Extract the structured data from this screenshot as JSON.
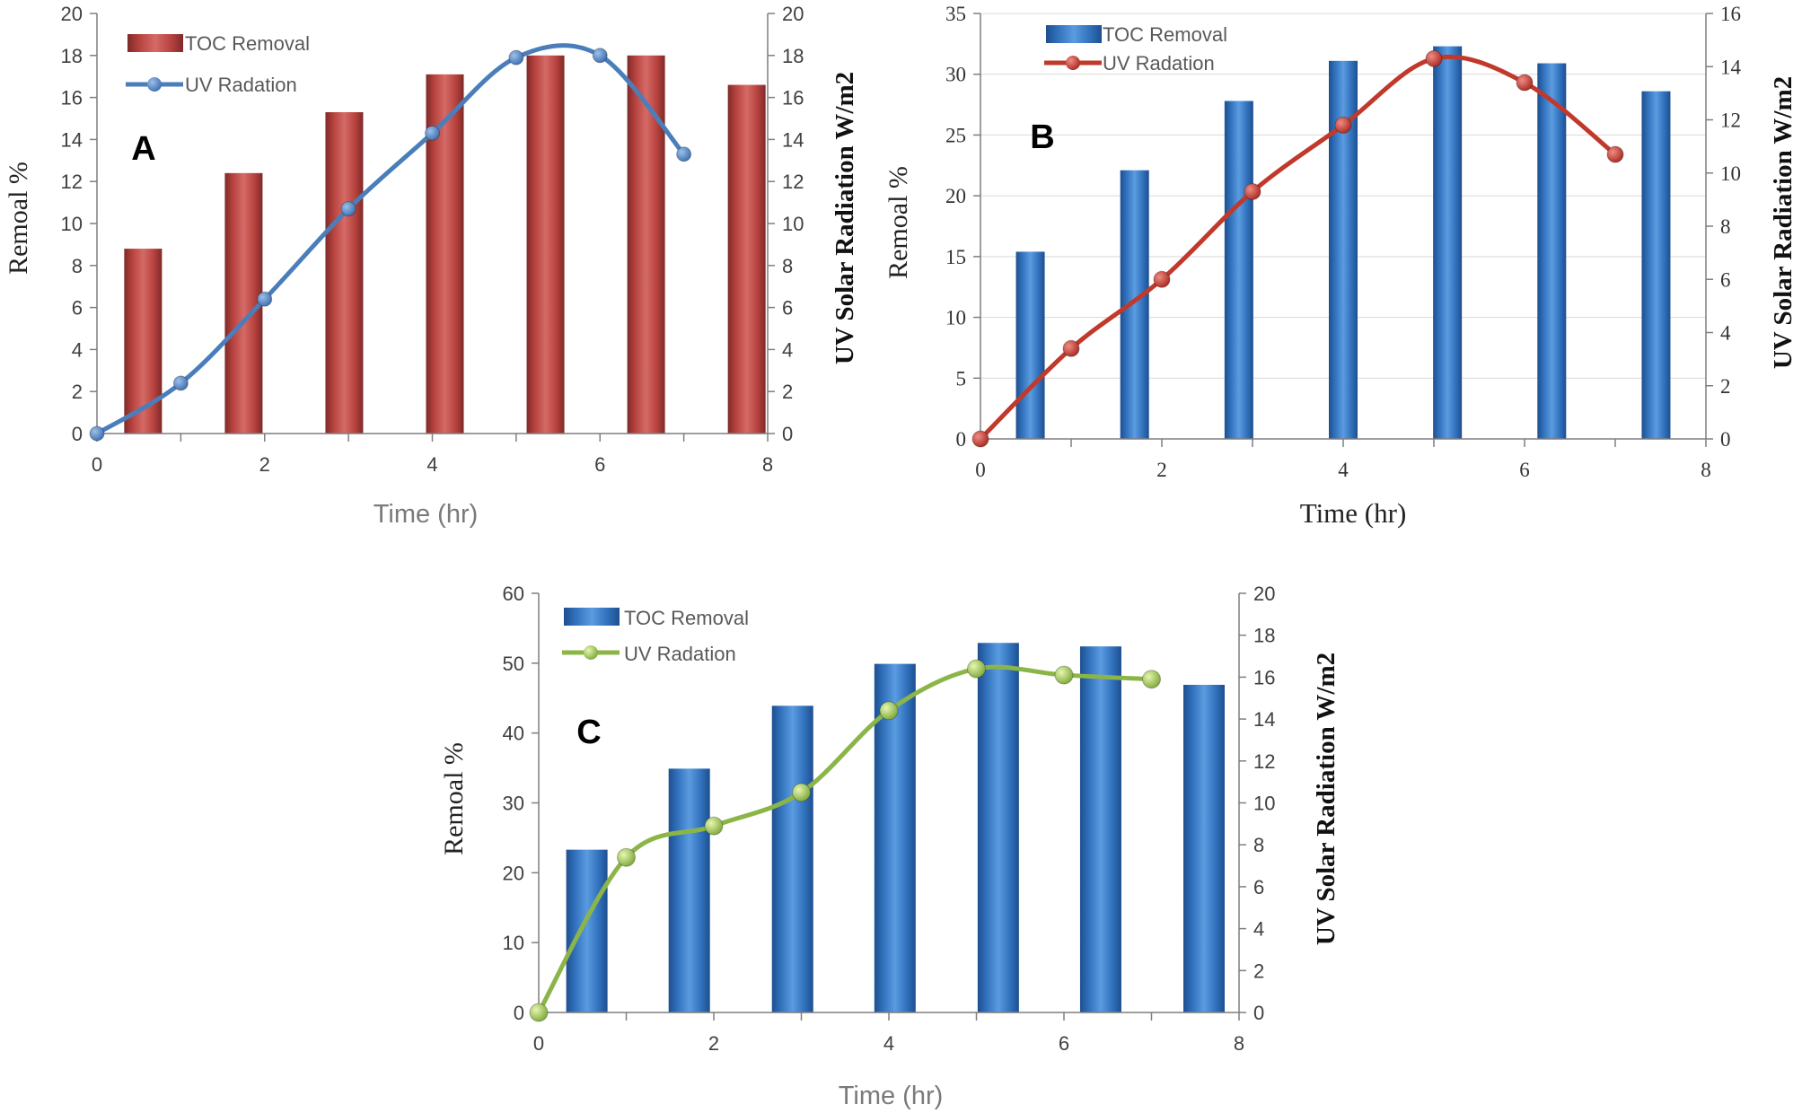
{
  "colors": {
    "red_bar": "#c0504d",
    "blue_bar": "#3b78c2",
    "blue_line": "#4a7ebb",
    "red_line": "#c0392b",
    "green_line": "#8cb548",
    "axis": "#7f7f7f",
    "grid": "#d9d9d9"
  },
  "chart_data": [
    {
      "type": "bar",
      "panel_label": "A",
      "xlabel": "Time (hr)",
      "ylabel": "Remoal %",
      "ylabel_right": "UV Solar Radiation W/m2",
      "xlim": [
        0,
        8
      ],
      "ylim": [
        0,
        20
      ],
      "ylim_right": [
        0,
        20
      ],
      "xticks": [
        "0",
        "2",
        "4",
        "6",
        "8"
      ],
      "yticks": [
        "0",
        "2",
        "4",
        "6",
        "8",
        "10",
        "12",
        "14",
        "16",
        "18",
        "20"
      ],
      "yticks_right": [
        "0",
        "2",
        "4",
        "6",
        "8",
        "10",
        "12",
        "14",
        "16",
        "18",
        "20"
      ],
      "legend": [
        "TOC Removal",
        "UV Radation"
      ],
      "bar_color": "#c0504d",
      "line_color": "#4a7ebb",
      "series": [
        {
          "name": "TOC Removal",
          "axis": "left",
          "x": [
            0.55,
            1.75,
            2.95,
            4.15,
            5.35,
            6.55,
            7.75
          ],
          "values": [
            8.8,
            12.4,
            15.3,
            17.1,
            18.0,
            18.0,
            16.6
          ]
        },
        {
          "name": "UV Radation",
          "axis": "right",
          "x": [
            0,
            1,
            2,
            3,
            4,
            5,
            6,
            7
          ],
          "values": [
            0,
            2.4,
            6.4,
            10.7,
            14.3,
            17.9,
            18.0,
            13.3
          ]
        }
      ]
    },
    {
      "type": "bar",
      "panel_label": "B",
      "xlabel": "Time (hr)",
      "ylabel": "Remoal %",
      "ylabel_right": "UV Solar Radiation W/m2",
      "xlim": [
        0,
        8
      ],
      "ylim": [
        0,
        35
      ],
      "ylim_right": [
        0,
        16
      ],
      "xticks": [
        "0",
        "2",
        "4",
        "6",
        "8"
      ],
      "yticks": [
        "0",
        "5",
        "10",
        "15",
        "20",
        "25",
        "30",
        "35"
      ],
      "yticks_right": [
        "0",
        "2",
        "4",
        "6",
        "8",
        "10",
        "12",
        "14",
        "16"
      ],
      "legend": [
        "TOC Removal",
        "UV Radation"
      ],
      "bar_color": "#3b78c2",
      "line_color": "#c0392b",
      "series": [
        {
          "name": "TOC Removal",
          "axis": "left",
          "x": [
            0.55,
            1.7,
            2.85,
            4.0,
            5.15,
            6.3,
            7.45
          ],
          "values": [
            15.4,
            22.1,
            27.8,
            31.1,
            32.3,
            30.9,
            28.6
          ]
        },
        {
          "name": "UV Radation",
          "axis": "right",
          "x": [
            0,
            1,
            2,
            3,
            4,
            5,
            6,
            7
          ],
          "values": [
            0,
            3.4,
            6.0,
            9.3,
            11.8,
            14.3,
            13.4,
            10.7
          ]
        }
      ]
    },
    {
      "type": "bar",
      "panel_label": "C",
      "xlabel": "Time (hr)",
      "ylabel": "Remoal %",
      "ylabel_right": "UV Solar Radiation W/m2",
      "xlim": [
        0,
        8
      ],
      "ylim": [
        0,
        60
      ],
      "ylim_right": [
        0,
        20
      ],
      "xticks": [
        "0",
        "2",
        "4",
        "6",
        "8"
      ],
      "yticks": [
        "0",
        "10",
        "20",
        "30",
        "40",
        "50",
        "60"
      ],
      "yticks_right": [
        "0",
        "2",
        "4",
        "6",
        "8",
        "10",
        "12",
        "14",
        "16",
        "18",
        "20"
      ],
      "legend": [
        "TOC Removal",
        "UV Radation"
      ],
      "bar_color": "#3b78c2",
      "line_color": "#8cb548",
      "series": [
        {
          "name": "TOC Removal",
          "axis": "left",
          "x": [
            0.55,
            1.72,
            2.9,
            4.07,
            5.25,
            6.42,
            7.6
          ],
          "values": [
            23.3,
            34.9,
            43.9,
            49.9,
            52.9,
            52.4,
            46.9
          ]
        },
        {
          "name": "UV Radation",
          "axis": "right",
          "x": [
            0,
            1,
            2,
            3,
            4,
            5,
            6,
            7
          ],
          "values": [
            0,
            7.4,
            8.9,
            10.5,
            14.4,
            16.4,
            16.1,
            15.9
          ]
        }
      ]
    }
  ]
}
